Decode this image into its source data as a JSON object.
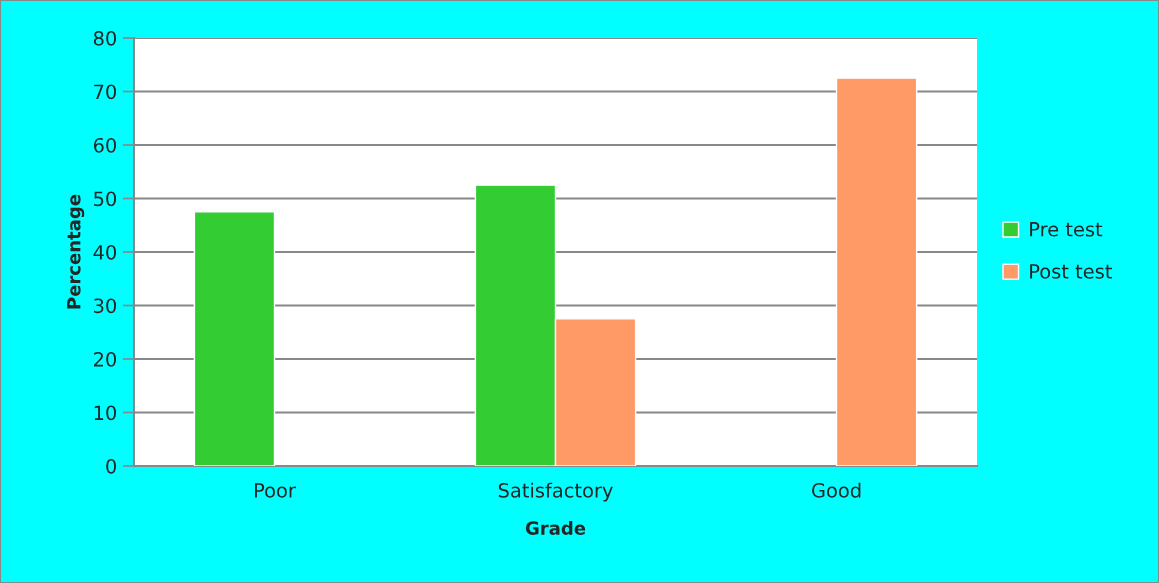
{
  "chart_data": {
    "type": "bar",
    "xlabel": "Grade",
    "ylabel": "Percentage",
    "categories": [
      "Poor",
      "Satisfactory",
      "Good"
    ],
    "series": [
      {
        "name": "Pre test",
        "color": "#33cc33",
        "values": [
          47.5,
          52.5,
          null
        ]
      },
      {
        "name": "Post test",
        "color": "#ff9966",
        "values": [
          null,
          27.5,
          72.5
        ]
      }
    ],
    "ylim": [
      0,
      80
    ],
    "yticks": [
      0,
      10,
      20,
      30,
      40,
      50,
      60,
      70,
      80
    ],
    "grid": "y",
    "legend": "right"
  }
}
